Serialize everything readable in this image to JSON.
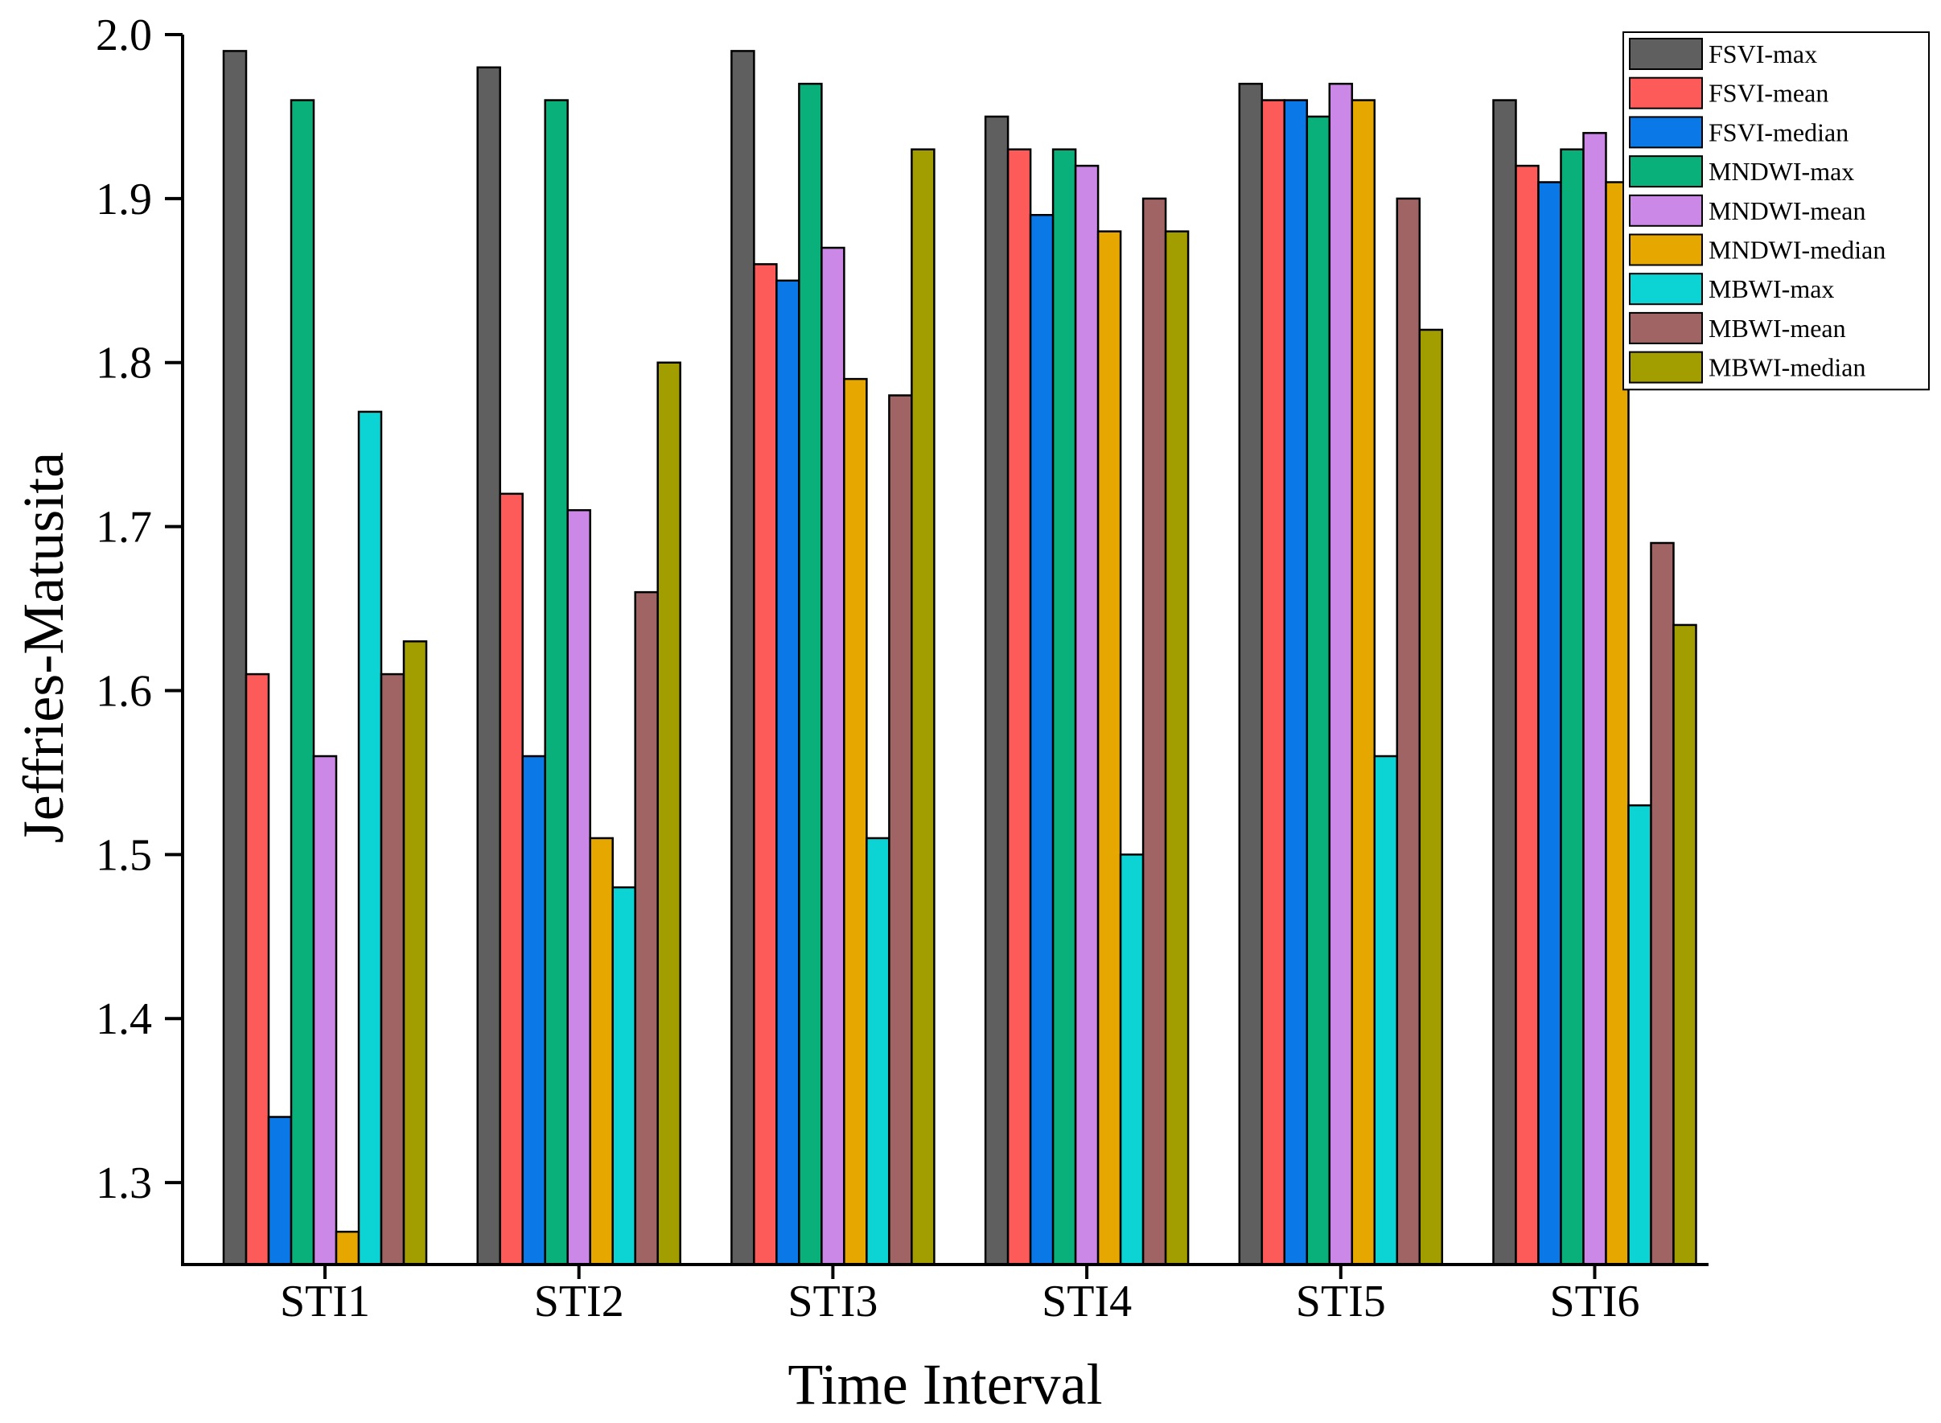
{
  "chart_data": {
    "type": "bar",
    "title": "",
    "xlabel": "Time Interval",
    "ylabel": "Jeffries-Matusita",
    "ylim": [
      1.25,
      2.0
    ],
    "yticks": [
      "1.3",
      "1.4",
      "1.5",
      "1.6",
      "1.7",
      "1.8",
      "1.9",
      "2.0"
    ],
    "grid": false,
    "legend_position": "top-right",
    "categories": [
      "STI1",
      "STI2",
      "STI3",
      "STI4",
      "STI5",
      "STI6"
    ],
    "series": [
      {
        "name": "FSVI-max",
        "color": "#5f5f5f",
        "values": [
          1.99,
          1.98,
          1.99,
          1.95,
          1.97,
          1.96
        ]
      },
      {
        "name": "FSVI-mean",
        "color": "#fd5a5a",
        "values": [
          1.61,
          1.72,
          1.86,
          1.93,
          1.96,
          1.92
        ]
      },
      {
        "name": "FSVI-median",
        "color": "#0a78e6",
        "values": [
          1.34,
          1.56,
          1.85,
          1.89,
          1.96,
          1.91
        ]
      },
      {
        "name": "MNDWI-max",
        "color": "#09b07a",
        "values": [
          1.96,
          1.96,
          1.97,
          1.93,
          1.95,
          1.93
        ]
      },
      {
        "name": "MNDWI-mean",
        "color": "#cc88e6",
        "values": [
          1.56,
          1.71,
          1.87,
          1.92,
          1.97,
          1.94
        ]
      },
      {
        "name": "MNDWI-median",
        "color": "#e6a800",
        "values": [
          1.27,
          1.51,
          1.79,
          1.88,
          1.96,
          1.91
        ]
      },
      {
        "name": "MBWI-max",
        "color": "#0cd4d4",
        "values": [
          1.77,
          1.48,
          1.51,
          1.5,
          1.56,
          1.53
        ]
      },
      {
        "name": "MBWI-mean",
        "color": "#a06464",
        "values": [
          1.61,
          1.66,
          1.78,
          1.9,
          1.9,
          1.69
        ]
      },
      {
        "name": "MBWI-median",
        "color": "#a39e00",
        "values": [
          1.63,
          1.8,
          1.93,
          1.88,
          1.82,
          1.64
        ]
      }
    ]
  }
}
